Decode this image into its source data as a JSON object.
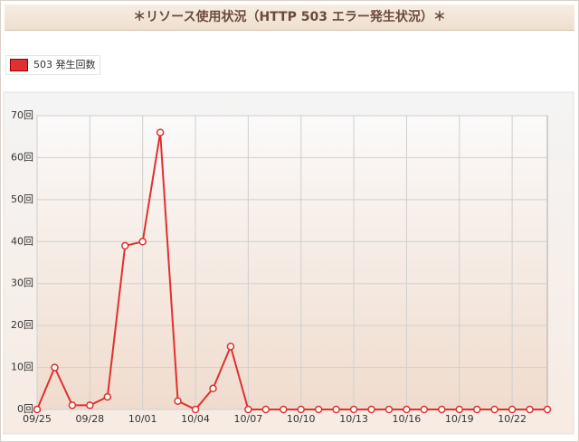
{
  "chart_data": {
    "type": "line",
    "title": "＊リソース使用状況（HTTP 503 エラー発生状況）＊",
    "categories": [
      "09/25",
      null,
      null,
      "09/28",
      null,
      null,
      "10/01",
      null,
      null,
      "10/04",
      null,
      null,
      "10/07",
      null,
      null,
      "10/10",
      null,
      null,
      "10/13",
      null,
      null,
      "10/16",
      null,
      null,
      "10/19",
      null,
      null,
      "10/22",
      null,
      null
    ],
    "series": [
      {
        "name": "503 発生回数",
        "color": "#e03030",
        "values": [
          0,
          10,
          1,
          1,
          3,
          39,
          40,
          66,
          2,
          0,
          5,
          15,
          0,
          0,
          0,
          0,
          0,
          0,
          0,
          0,
          0,
          0,
          0,
          0,
          0,
          0,
          0,
          0,
          0,
          0
        ]
      }
    ],
    "ylim": [
      0,
      70
    ],
    "yticks": [
      {
        "value": 0,
        "label": "0回"
      },
      {
        "value": 10,
        "label": "10回"
      },
      {
        "value": 20,
        "label": "20回"
      },
      {
        "value": 30,
        "label": "30回"
      },
      {
        "value": 40,
        "label": "40回"
      },
      {
        "value": 50,
        "label": "50回"
      },
      {
        "value": 60,
        "label": "60回"
      },
      {
        "value": 70,
        "label": "70回"
      }
    ],
    "grid": true
  }
}
